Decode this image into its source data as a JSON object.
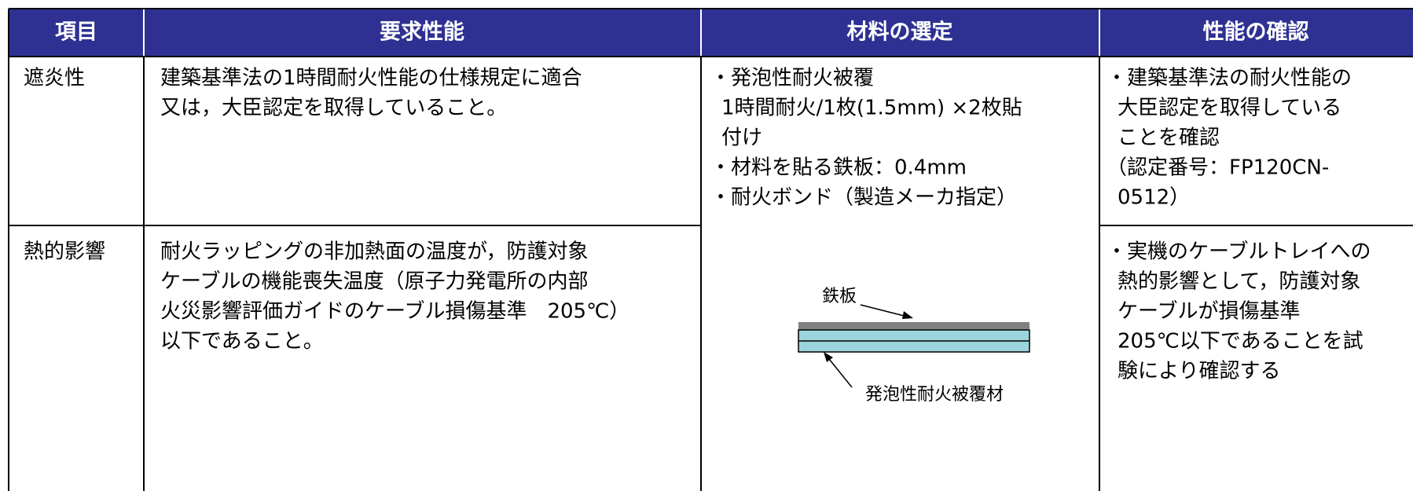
{
  "table": {
    "header": [
      "項目",
      "要求性能",
      "材料の選定",
      "性能の確認"
    ],
    "rows": [
      {
        "item": "遮炎性",
        "requirement": [
          "建築基準法の1時間耐火性能の仕様規定に適合",
          "又は，大臣認定を取得していること。"
        ],
        "confirmation": [
          "・建築基準法の耐火性能の",
          "大臣認定を取得している",
          "ことを確認",
          "（認定番号：FP120CN-",
          "0512）"
        ]
      },
      {
        "item": "熱的影響",
        "requirement": [
          "耐火ラッピングの非加熱面の温度が，防護対象",
          "ケーブルの機能喪失温度（原子力発電所の内部",
          "火災影響評価ガイドのケーブル損傷基準　205℃）",
          "以下であること。"
        ],
        "confirmation": [
          "・実機のケーブルトレイへの",
          "熱的影響として，防護対象",
          "ケーブルが損傷基準",
          "205℃以下であることを試",
          "験により確認する"
        ]
      }
    ],
    "materials": {
      "lines": [
        "・発泡性耐火被覆",
        "1時間耐火/1枚(1.5mm) ×2枚貼",
        "付け",
        "・材料を貼る鉄板：0.4mm",
        "・耐火ボンド（製造メーカ指定）"
      ],
      "diagram": {
        "steel_label": "鉄板",
        "coating_label": "発泡性耐火被覆材"
      }
    }
  }
}
